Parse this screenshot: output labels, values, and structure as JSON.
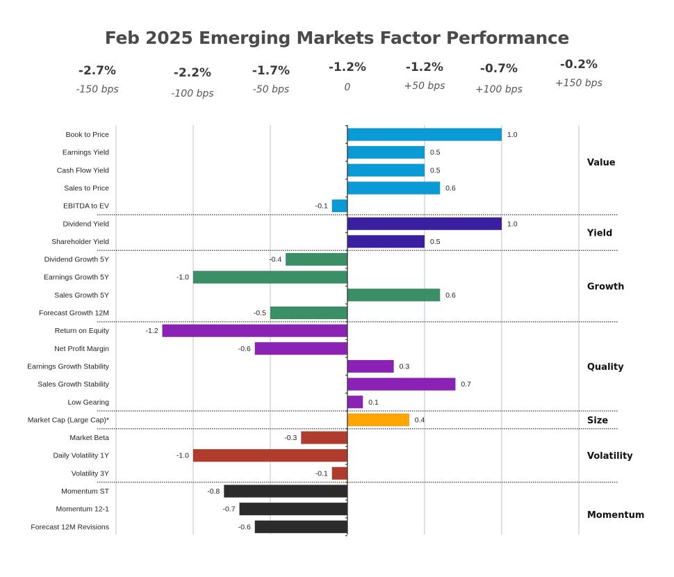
{
  "chart_data": {
    "type": "bar",
    "orientation": "horizontal",
    "title": "Feb 2025 Emerging Markets Factor Performance",
    "scenarios": [
      {
        "return": "-2.7%",
        "shift": "-150 bps"
      },
      {
        "return": "-2.2%",
        "shift": "-100 bps"
      },
      {
        "return": "-1.7%",
        "shift": "-50 bps"
      },
      {
        "return": "-1.2%",
        "shift": "0"
      },
      {
        "return": "-1.2%",
        "shift": "+50 bps"
      },
      {
        "return": "-0.7%",
        "shift": "+100 bps"
      },
      {
        "return": "-0.2%",
        "shift": "+150 bps"
      }
    ],
    "xlim": [
      -1.5,
      1.5
    ],
    "gridlines": [
      -1.5,
      -1.0,
      -0.5,
      0.5,
      1.0,
      1.5
    ],
    "grid": true,
    "groups": [
      {
        "name": "Value",
        "color": "#0a9ad6",
        "factors": [
          {
            "label": "Book to Price",
            "value": 1.0,
            "text": "1.0"
          },
          {
            "label": "Earnings Yield",
            "value": 0.5,
            "text": "0.5"
          },
          {
            "label": "Cash Flow Yield",
            "value": 0.5,
            "text": "0.5"
          },
          {
            "label": "Sales to Price",
            "value": 0.6,
            "text": "0.6"
          },
          {
            "label": "EBITDA to EV",
            "value": -0.1,
            "text": "-0.1"
          }
        ]
      },
      {
        "name": "Yield",
        "color": "#3a20a0",
        "factors": [
          {
            "label": "Dividend Yield",
            "value": 1.0,
            "text": "1.0"
          },
          {
            "label": "Shareholder Yield",
            "value": 0.5,
            "text": "0.5"
          }
        ]
      },
      {
        "name": "Growth",
        "color": "#3a8f67",
        "factors": [
          {
            "label": "Dividend Growth 5Y",
            "value": -0.4,
            "text": "-0.4"
          },
          {
            "label": "Earnings Growth 5Y",
            "value": -1.0,
            "text": "-1.0"
          },
          {
            "label": "Sales Growth 5Y",
            "value": 0.6,
            "text": "0.6"
          },
          {
            "label": "Forecast Growth 12M",
            "value": -0.5,
            "text": "-0.5"
          }
        ]
      },
      {
        "name": "Quality",
        "color": "#8a22b5",
        "factors": [
          {
            "label": "Return on Equity",
            "value": -1.2,
            "text": "-1.2"
          },
          {
            "label": "Net Profit Margin",
            "value": -0.6,
            "text": "-0.6"
          },
          {
            "label": "Earnings Growth Stability",
            "value": 0.3,
            "text": "0.3"
          },
          {
            "label": "Sales Growth Stability",
            "value": 0.7,
            "text": "0.7"
          },
          {
            "label": "Low Gearing",
            "value": 0.1,
            "text": "0.1"
          }
        ]
      },
      {
        "name": "Size",
        "color": "#ffa600",
        "factors": [
          {
            "label": "Market Cap (Large Cap)*",
            "value": 0.4,
            "text": "0.4"
          }
        ]
      },
      {
        "name": "Volatility",
        "color": "#b03c2e",
        "factors": [
          {
            "label": "Market Beta",
            "value": -0.3,
            "text": "-0.3"
          },
          {
            "label": "Daily Volatility 1Y",
            "value": -1.0,
            "text": "-1.0"
          },
          {
            "label": "Volatility 3Y",
            "value": -0.1,
            "text": "-0.1"
          }
        ]
      },
      {
        "name": "Momentum",
        "color": "#2b2b2b",
        "factors": [
          {
            "label": "Momentum ST",
            "value": -0.8,
            "text": "-0.8"
          },
          {
            "label": "Momentum 12-1",
            "value": -0.7,
            "text": "-0.7"
          },
          {
            "label": "Forecast 12M Revisions",
            "value": -0.6,
            "text": "-0.6"
          }
        ]
      }
    ]
  }
}
